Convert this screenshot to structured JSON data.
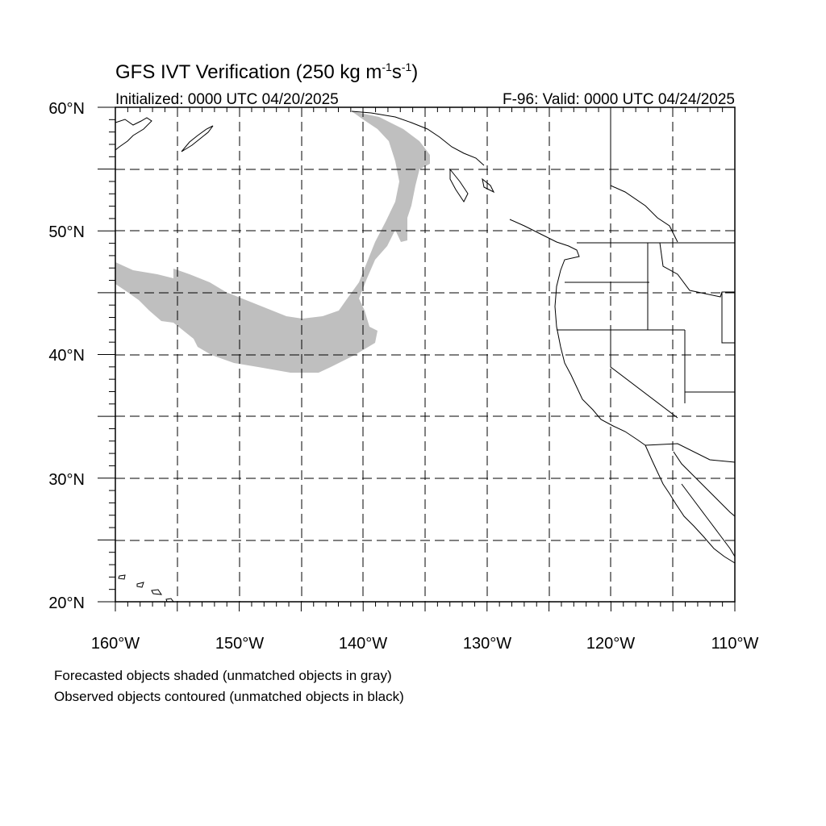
{
  "title": {
    "main": "GFS IVT Verification (250 kg m",
    "sup1": "-1",
    "mid": "s",
    "sup2": "-1",
    "end": ")"
  },
  "subtitle_left": "Initialized: 0000 UTC 04/20/2025",
  "subtitle_right": "F-96: Valid: 0000 UTC 04/24/2025",
  "map": {
    "lon_range": [
      -160,
      -110
    ],
    "lat_range": [
      20,
      60
    ],
    "gridlines": "dashed",
    "grid_lon_step": 5,
    "grid_lat_step": 5,
    "forecast_object_color": "#bfbfbf"
  },
  "lat_labels": [
    "60°N",
    "50°N",
    "40°N",
    "30°N",
    "20°N"
  ],
  "lon_labels": [
    "160°W",
    "150°W",
    "140°W",
    "130°W",
    "120°W",
    "110°W"
  ],
  "footer": {
    "line1": "Forecasted objects shaded (unmatched objects in gray)",
    "line2": "Observed objects contoured (unmatched objects in black)"
  }
}
